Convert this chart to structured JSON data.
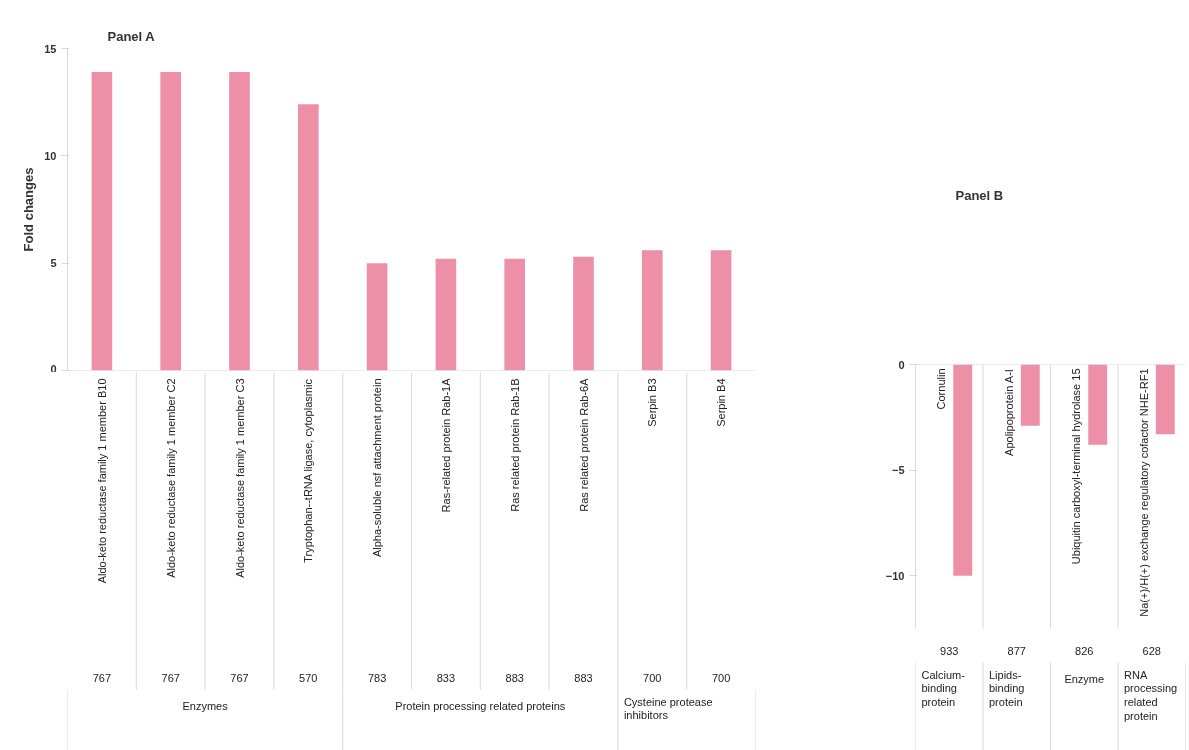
{
  "chart_data": [
    {
      "type": "bar",
      "title": "Panel A",
      "ylabel": "Fold changes",
      "categories": [
        "Aldo-keto reductase family 1 member B10",
        "Aldo-keto reductase family 1 member C2",
        "Aldo-keto reductase family 1 member C3",
        "Tryptophan--tRNA ligase, cytoplasmic",
        "Alpha-soluble nsf attachment protein",
        "Ras-related protein Rab-1A",
        "Ras related protein Rab-1B",
        "Ras related protein Rab-6A",
        "Serpin B3",
        "Serpin B4"
      ],
      "values": [
        13.9,
        13.9,
        13.9,
        12.4,
        5.0,
        5.2,
        5.2,
        5.3,
        5.6,
        5.6
      ],
      "color": "#ee8fa8",
      "ylim": [
        0,
        15
      ],
      "yticks": [
        0,
        5,
        10,
        15
      ],
      "annotations": [
        "767",
        "767",
        "767",
        "570",
        "783",
        "833",
        "883",
        "883",
        "700",
        "700",
        "Enzymes",
        "Protein processing related proteins",
        "Cysteine protease inhibitors"
      ]
    },
    {
      "type": "bar",
      "title": "Panel B",
      "categories": [
        "Cornulin",
        "Apolipoprotein A-I",
        "Ubiquitin carboxyl-terminal hydrolase 15",
        "Na(+)/H(+) exchange regulatory cofactor NHE-RF1"
      ],
      "values": [
        -10.0,
        -2.9,
        -3.8,
        -3.3
      ],
      "color": "#ee8fa8",
      "ylim": [
        -12.5,
        0
      ],
      "yticks": [
        0,
        -5,
        -10
      ],
      "annotations": [
        "933",
        "877",
        "826",
        "628",
        "Calcium-binding protein",
        "Lipids-binding protein",
        "Enzyme",
        "RNA processing related protein"
      ]
    }
  ]
}
